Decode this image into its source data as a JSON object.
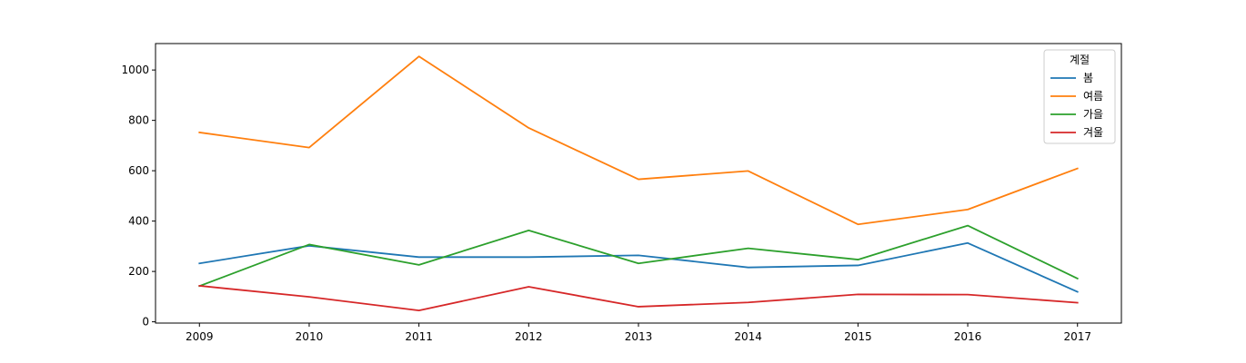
{
  "chart_data": {
    "type": "line",
    "title": "",
    "xlabel": "",
    "ylabel": "",
    "x": [
      2009,
      2010,
      2011,
      2012,
      2013,
      2014,
      2015,
      2016,
      2017
    ],
    "x_tick_labels": [
      "2009",
      "2010",
      "2011",
      "2012",
      "2013",
      "2014",
      "2015",
      "2016",
      "2017"
    ],
    "xlim": [
      2008.6,
      2017.4
    ],
    "ylim": [
      -5,
      1105
    ],
    "y_ticks": [
      0,
      200,
      400,
      600,
      800,
      1000
    ],
    "y_tick_labels": [
      "0",
      "200",
      "400",
      "600",
      "800",
      "1000"
    ],
    "grid": false,
    "legend": {
      "title": "계절",
      "placement": "top-right"
    },
    "series": [
      {
        "name": "봄",
        "color": "#1f77b4",
        "values": [
          232,
          302,
          257,
          257,
          264,
          216,
          224,
          313,
          119
        ]
      },
      {
        "name": "여름",
        "color": "#ff7f0e",
        "values": [
          752,
          692,
          1054,
          770,
          566,
          599,
          387,
          446,
          609
        ]
      },
      {
        "name": "가을",
        "color": "#2ca02c",
        "values": [
          142,
          307,
          226,
          363,
          232,
          292,
          247,
          382,
          172
        ]
      },
      {
        "name": "겨울",
        "color": "#d62728",
        "values": [
          143,
          99,
          45,
          139,
          60,
          77,
          109,
          108,
          76
        ]
      }
    ]
  }
}
